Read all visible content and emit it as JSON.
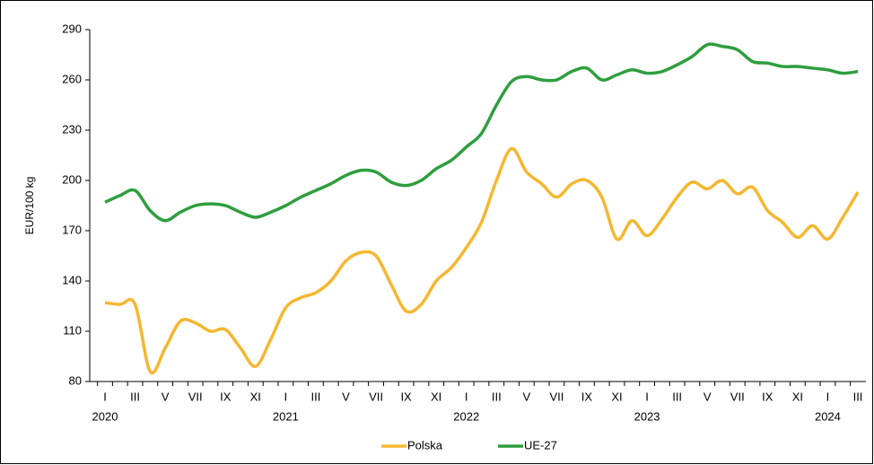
{
  "chart_data": {
    "type": "line",
    "y_label": "EUR/100 kg",
    "categories": [
      "I",
      null,
      "III",
      null,
      "V",
      null,
      "VII",
      null,
      "IX",
      null,
      "XI",
      null,
      "I",
      null,
      "III",
      null,
      "V",
      null,
      "VII",
      null,
      "IX",
      null,
      "XI",
      null,
      "I",
      null,
      "III",
      null,
      "V",
      null,
      "VII",
      null,
      "IX",
      null,
      "XI",
      null,
      "I",
      null,
      "III",
      null,
      "V",
      null,
      "VII",
      null,
      "IX",
      null,
      "XI",
      null,
      "I",
      null,
      "III"
    ],
    "years": [
      "2020",
      "2021",
      "2022",
      "2023",
      "2024"
    ],
    "series": [
      {
        "name": "Polska",
        "color": "#f5b731",
        "values": [
          127,
          126,
          126,
          86,
          100,
          116,
          115,
          110,
          111,
          100,
          89,
          105,
          124,
          130,
          133,
          140,
          152,
          157,
          155,
          138,
          122,
          126,
          140,
          148,
          160,
          175,
          200,
          219,
          205,
          198,
          190,
          198,
          200,
          190,
          165,
          176,
          167,
          177,
          190,
          199,
          195,
          200,
          192,
          196,
          182,
          175,
          166,
          173,
          165,
          178,
          193
        ]
      },
      {
        "name": "UE-27",
        "color": "#2e9e3e",
        "values": [
          187,
          191,
          194,
          182,
          176,
          181,
          185,
          186,
          185,
          181,
          178,
          181,
          185,
          190,
          194,
          198,
          203,
          206,
          205,
          199,
          197,
          200,
          207,
          212,
          220,
          228,
          245,
          259,
          262,
          260,
          260,
          265,
          267,
          260,
          263,
          266,
          264,
          265,
          269,
          274,
          281,
          280,
          278,
          271,
          270,
          268,
          268,
          267,
          266,
          264,
          265
        ]
      }
    ],
    "ylim": [
      80,
      290
    ],
    "yticks": [
      80,
      110,
      140,
      170,
      200,
      230,
      260,
      290
    ],
    "legend": "bottom"
  }
}
